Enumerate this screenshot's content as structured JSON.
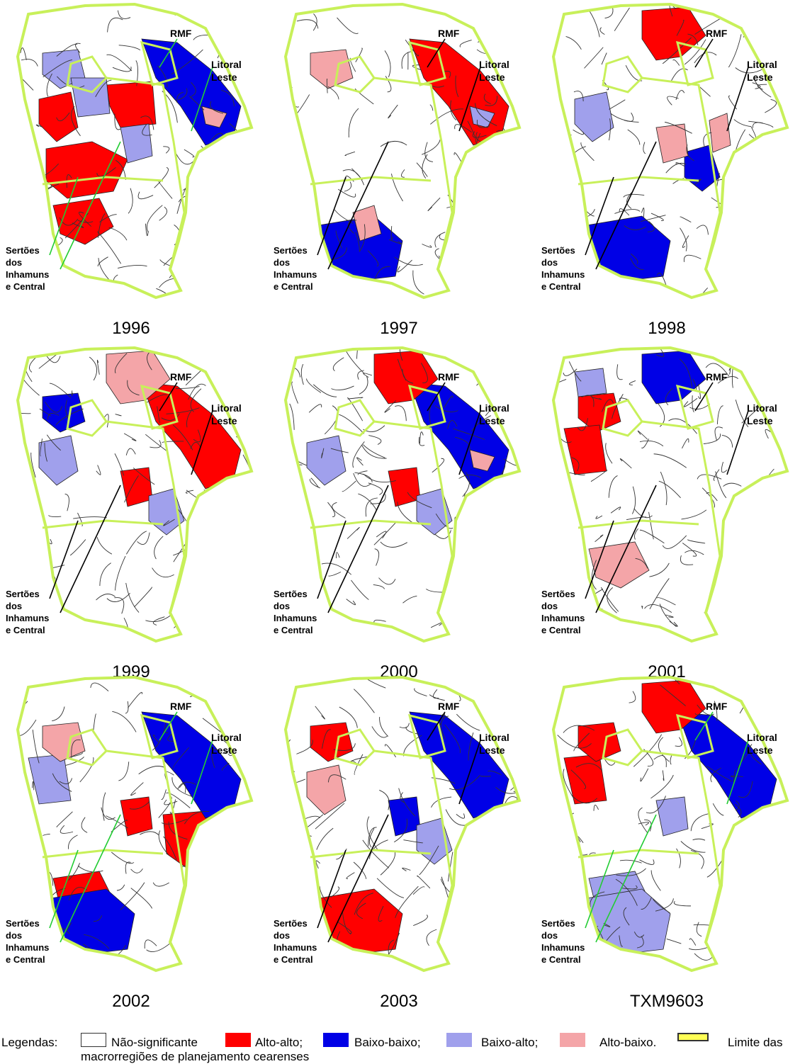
{
  "panels": [
    {
      "year": "1996",
      "labels": {
        "rmf": "RMF",
        "litoral": [
          "Litoral",
          "Leste"
        ],
        "sertoes": [
          "Sertões",
          "dos",
          "Inhamuns",
          "e Central"
        ]
      },
      "regions": [
        [
          "r",
          "hi"
        ],
        [
          "b",
          "ne"
        ],
        [
          "lb",
          "nw"
        ],
        [
          "r",
          "cw"
        ],
        [
          "r",
          "sw"
        ],
        [
          "r",
          "sc"
        ],
        [
          "lb",
          "cw2"
        ],
        [
          "lb",
          "c"
        ],
        [
          "p",
          "ne2"
        ]
      ]
    },
    {
      "year": "1997",
      "labels": {
        "rmf": "RMF",
        "litoral": [
          "Litoral",
          "Leste"
        ],
        "sertoes": [
          "Sertões",
          "dos",
          "Inhamuns",
          "e Central"
        ]
      },
      "regions": [
        [
          "r",
          "ne"
        ],
        [
          "b",
          "s"
        ],
        [
          "p",
          "s2"
        ],
        [
          "p",
          "nw"
        ],
        [
          "lb",
          "ne2"
        ]
      ]
    },
    {
      "year": "1998",
      "labels": {
        "rmf": "RMF",
        "litoral": [
          "Litoral",
          "Leste"
        ],
        "sertoes": [
          "Sertões",
          "dos",
          "Inhamuns",
          "e Central"
        ]
      },
      "regions": [
        [
          "r",
          "n"
        ],
        [
          "b",
          "e"
        ],
        [
          "b",
          "s"
        ],
        [
          "p",
          "c"
        ],
        [
          "lb",
          "cw"
        ],
        [
          "p",
          "e2"
        ]
      ]
    },
    {
      "year": "1999",
      "labels": {
        "rmf": "RMF",
        "litoral": [
          "Litoral",
          "Leste"
        ],
        "sertoes": [
          "Sertões",
          "dos",
          "Inhamuns",
          "e Central"
        ]
      },
      "regions": [
        [
          "r",
          "ne"
        ],
        [
          "r",
          "c"
        ],
        [
          "b",
          "nw"
        ],
        [
          "p",
          "n"
        ],
        [
          "lb",
          "e"
        ],
        [
          "lb",
          "cw"
        ]
      ]
    },
    {
      "year": "2000",
      "labels": {
        "rmf": "RMF",
        "litoral": [
          "Litoral",
          "Leste"
        ],
        "sertoes": [
          "Sertões",
          "dos",
          "Inhamuns",
          "e Central"
        ]
      },
      "regions": [
        [
          "r",
          "c"
        ],
        [
          "b",
          "ne"
        ],
        [
          "lb",
          "cw"
        ],
        [
          "lb",
          "e"
        ],
        [
          "p",
          "ne2"
        ],
        [
          "r",
          "n"
        ]
      ]
    },
    {
      "year": "2001",
      "labels": {
        "rmf": "RMF",
        "litoral": [
          "Litoral",
          "Leste"
        ],
        "sertoes": [
          "Sertões",
          "dos",
          "Inhamuns",
          "e Central"
        ]
      },
      "regions": [
        [
          "b",
          "n"
        ],
        [
          "r",
          "nw"
        ],
        [
          "r",
          "w"
        ],
        [
          "p",
          "sw"
        ],
        [
          "lb",
          "nw2"
        ]
      ]
    },
    {
      "year": "2002",
      "labels": {
        "rmf": "RMF",
        "litoral": [
          "Litoral",
          "Leste"
        ],
        "sertoes": [
          "Sertões",
          "dos",
          "Inhamuns",
          "e Central"
        ]
      },
      "regions": [
        [
          "r",
          "c"
        ],
        [
          "r",
          "sw"
        ],
        [
          "r",
          "se"
        ],
        [
          "b",
          "ne"
        ],
        [
          "lb",
          "w"
        ],
        [
          "b",
          "s"
        ],
        [
          "p",
          "nw"
        ]
      ]
    },
    {
      "year": "2003",
      "labels": {
        "rmf": "RMF",
        "litoral": [
          "Litoral",
          "Leste"
        ],
        "sertoes": [
          "Sertões",
          "dos",
          "Inhamuns",
          "e Central"
        ]
      },
      "regions": [
        [
          "b",
          "c"
        ],
        [
          "p",
          "cw"
        ],
        [
          "r",
          "s"
        ],
        [
          "b",
          "ne"
        ],
        [
          "lb",
          "e"
        ],
        [
          "r",
          "nw"
        ]
      ]
    },
    {
      "year": "TXM9603",
      "labels": {
        "rmf": "RMF",
        "litoral": [
          "Litoral",
          "Leste"
        ],
        "sertoes": [
          "Sertões",
          "dos",
          "Inhamuns",
          "e Central"
        ]
      },
      "regions": [
        [
          "b",
          "ne"
        ],
        [
          "r",
          "n"
        ],
        [
          "r",
          "w"
        ],
        [
          "lb",
          "c"
        ],
        [
          "lb",
          "sw"
        ],
        [
          "r",
          "nw"
        ],
        [
          "lb",
          "s"
        ]
      ]
    }
  ],
  "legend": {
    "prefix": "Legendas:",
    "items": [
      {
        "swatch": "white",
        "label": "Não-significante"
      },
      {
        "swatch": "red",
        "label": "Alto-alto;"
      },
      {
        "swatch": "blue",
        "label": "Baixo-baixo;"
      },
      {
        "swatch": "lblue",
        "label": "Baixo-alto;"
      },
      {
        "swatch": "pink",
        "label": "Alto-baixo."
      },
      {
        "swatch": "limit",
        "label": "Limite das"
      }
    ],
    "line2": "macrorregiões de planejamento cearenses"
  },
  "colors": {
    "r": "#ff0000",
    "b": "#0000e6",
    "lb": "#a0a0ec",
    "p": "#f4a5a8",
    "outline": "#c8f05a",
    "muni": "#333333"
  }
}
